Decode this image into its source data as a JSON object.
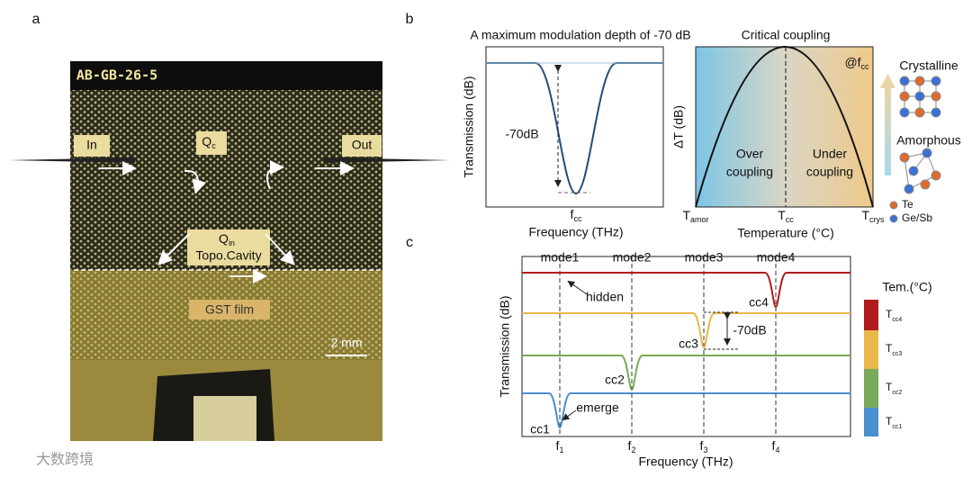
{
  "panel_a": {
    "label": "a",
    "chip_id": "AB-GB-26-5",
    "in": "In",
    "qc": {
      "main": "Q",
      "sub": "c"
    },
    "out": "Out",
    "qin": {
      "main": "Q",
      "sub": "in"
    },
    "cavity": "Topo.Cavity",
    "film": "GST film",
    "scale_bar": "2 mm"
  },
  "panel_b": {
    "label": "b",
    "left": {
      "title": "A maximum modulation depth of -70 dB",
      "y_label": "Transmission (dB)",
      "depth": "-70dB",
      "x_tick": {
        "main": "f",
        "sub": "cc"
      },
      "x_label": "Frequency (THz)"
    },
    "right": {
      "title": "Critical coupling",
      "at": {
        "main": "@f",
        "sub": "cc"
      },
      "y_label": "ΔT (dB)",
      "over": [
        "Over",
        "coupling"
      ],
      "under": [
        "Under",
        "coupling"
      ],
      "x_ticks": [
        {
          "main": "T",
          "sub": "amor"
        },
        {
          "main": "T",
          "sub": "cc"
        },
        {
          "main": "T",
          "sub": "crys"
        }
      ],
      "x_label": "Temperature (°C)"
    },
    "phases": {
      "crystalline": "Crystalline",
      "amorphous": "Amorphous",
      "legend": [
        "Te",
        "Ge/Sb"
      ]
    }
  },
  "panel_c": {
    "label": "c",
    "modes": [
      "mode1",
      "mode2",
      "mode3",
      "mode4"
    ],
    "y_label": "Transmission (dB)",
    "x_label": "Frequency (THz)",
    "x_ticks": [
      {
        "main": "f",
        "sub": "1"
      },
      {
        "main": "f",
        "sub": "2"
      },
      {
        "main": "f",
        "sub": "3"
      },
      {
        "main": "f",
        "sub": "4"
      }
    ],
    "annotations": {
      "hidden": "hidden",
      "emerge": "emerge",
      "depth": "-70dB"
    },
    "dips": [
      "cc1",
      "cc2",
      "cc3",
      "cc4"
    ],
    "legend": {
      "title": "Tem.(°C)",
      "entries": [
        {
          "main": "T",
          "sub": "cc4"
        },
        {
          "main": "T",
          "sub": "cc3"
        },
        {
          "main": "T",
          "sub": "cc2"
        },
        {
          "main": "T",
          "sub": "cc1"
        }
      ]
    }
  },
  "watermark": "大数跨境"
}
